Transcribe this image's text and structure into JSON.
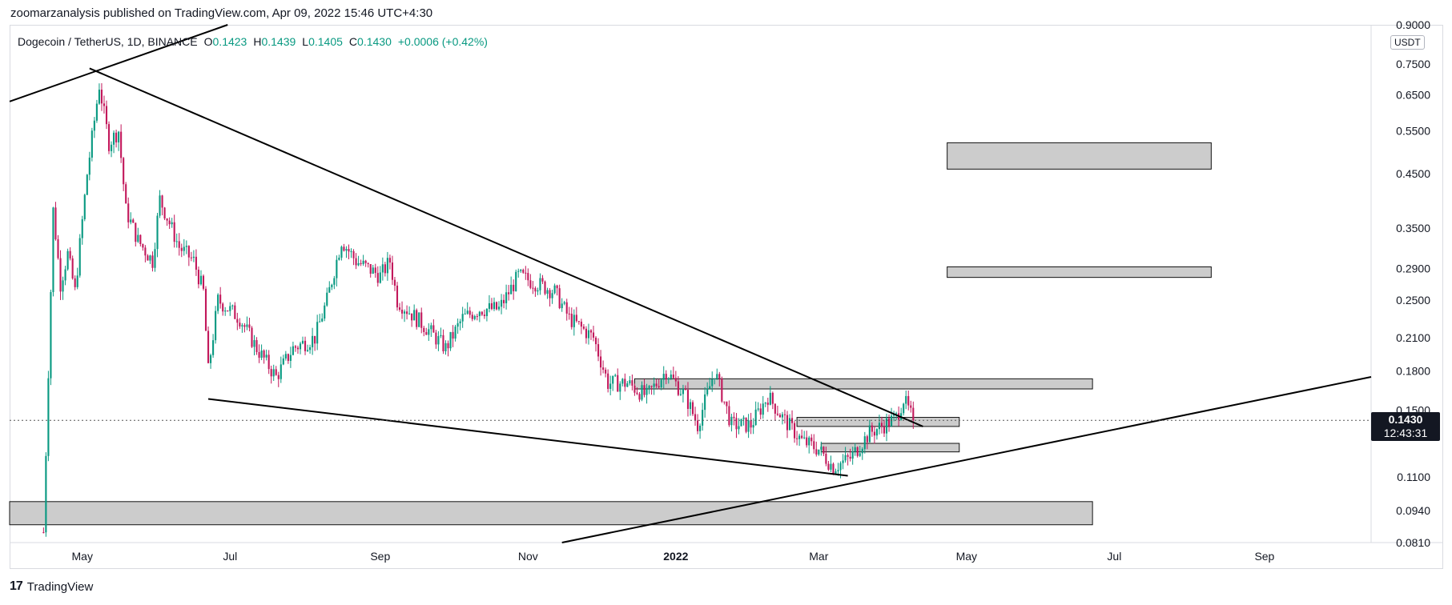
{
  "header": {
    "publisher": "zoomarzanalysis published on TradingView.com, Apr 09, 2022 15:46 UTC+4:30"
  },
  "footer": {
    "brand": "TradingView",
    "logo": "17"
  },
  "legend": {
    "symbol": "Dogecoin / TetherUS, 1D, BINANCE",
    "open_label": "O",
    "open": "0.1423",
    "high_label": "H",
    "high": "0.1439",
    "low_label": "L",
    "low": "0.1405",
    "close_label": "C",
    "close": "0.1430",
    "change": "+0.0006 (+0.42%)"
  },
  "currency": "USDT",
  "price_tag": {
    "price": "0.1430",
    "countdown": "12:43:31"
  },
  "colors": {
    "up": "#089981",
    "down": "#c2185b",
    "zone_fill": "#cccccc",
    "line": "#000000"
  },
  "chart_data": {
    "type": "candlestick",
    "scale": "log",
    "ylim": [
      0.081,
      0.9
    ],
    "y_ticks": [
      "0.9000",
      "0.7500",
      "0.6500",
      "0.5500",
      "0.4500",
      "0.3500",
      "0.2900",
      "0.2500",
      "0.2100",
      "0.1800",
      "0.1500",
      "0.1100",
      "0.0940",
      "0.0810"
    ],
    "x_ticks": [
      "May",
      "Jul",
      "Sep",
      "Nov",
      "2022",
      "Mar",
      "May",
      "Jul",
      "Sep"
    ],
    "current_price": 0.143,
    "close_path": [
      {
        "x": "2021-04-15",
        "y": 0.085
      },
      {
        "x": "2021-04-17",
        "y": 0.18
      },
      {
        "x": "2021-04-19",
        "y": 0.38
      },
      {
        "x": "2021-04-22",
        "y": 0.27
      },
      {
        "x": "2021-04-25",
        "y": 0.31
      },
      {
        "x": "2021-04-28",
        "y": 0.26
      },
      {
        "x": "2021-05-03",
        "y": 0.45
      },
      {
        "x": "2021-05-08",
        "y": 0.68
      },
      {
        "x": "2021-05-12",
        "y": 0.52
      },
      {
        "x": "2021-05-16",
        "y": 0.55
      },
      {
        "x": "2021-05-19",
        "y": 0.38
      },
      {
        "x": "2021-05-24",
        "y": 0.33
      },
      {
        "x": "2021-05-30",
        "y": 0.3
      },
      {
        "x": "2021-06-02",
        "y": 0.4
      },
      {
        "x": "2021-06-10",
        "y": 0.32
      },
      {
        "x": "2021-06-16",
        "y": 0.3
      },
      {
        "x": "2021-06-20",
        "y": 0.26
      },
      {
        "x": "2021-06-22",
        "y": 0.18
      },
      {
        "x": "2021-06-26",
        "y": 0.25
      },
      {
        "x": "2021-07-05",
        "y": 0.23
      },
      {
        "x": "2021-07-12",
        "y": 0.2
      },
      {
        "x": "2021-07-20",
        "y": 0.175
      },
      {
        "x": "2021-07-27",
        "y": 0.2
      },
      {
        "x": "2021-08-05",
        "y": 0.21
      },
      {
        "x": "2021-08-10",
        "y": 0.25
      },
      {
        "x": "2021-08-16",
        "y": 0.33
      },
      {
        "x": "2021-08-22",
        "y": 0.3
      },
      {
        "x": "2021-09-01",
        "y": 0.28
      },
      {
        "x": "2021-09-05",
        "y": 0.3
      },
      {
        "x": "2021-09-08",
        "y": 0.25
      },
      {
        "x": "2021-09-20",
        "y": 0.22
      },
      {
        "x": "2021-09-28",
        "y": 0.2
      },
      {
        "x": "2021-10-05",
        "y": 0.23
      },
      {
        "x": "2021-10-12",
        "y": 0.24
      },
      {
        "x": "2021-10-20",
        "y": 0.24
      },
      {
        "x": "2021-10-28",
        "y": 0.28
      },
      {
        "x": "2021-11-05",
        "y": 0.27
      },
      {
        "x": "2021-11-12",
        "y": 0.26
      },
      {
        "x": "2021-11-18",
        "y": 0.23
      },
      {
        "x": "2021-11-28",
        "y": 0.21
      },
      {
        "x": "2021-12-04",
        "y": 0.17
      },
      {
        "x": "2021-12-12",
        "y": 0.17
      },
      {
        "x": "2021-12-20",
        "y": 0.16
      },
      {
        "x": "2021-12-28",
        "y": 0.18
      },
      {
        "x": "2022-01-05",
        "y": 0.16
      },
      {
        "x": "2022-01-10",
        "y": 0.14
      },
      {
        "x": "2022-01-17",
        "y": 0.18
      },
      {
        "x": "2022-01-24",
        "y": 0.14
      },
      {
        "x": "2022-02-01",
        "y": 0.14
      },
      {
        "x": "2022-02-08",
        "y": 0.16
      },
      {
        "x": "2022-02-14",
        "y": 0.145
      },
      {
        "x": "2022-02-22",
        "y": 0.13
      },
      {
        "x": "2022-03-01",
        "y": 0.125
      },
      {
        "x": "2022-03-07",
        "y": 0.115
      },
      {
        "x": "2022-03-14",
        "y": 0.12
      },
      {
        "x": "2022-03-22",
        "y": 0.135
      },
      {
        "x": "2022-03-28",
        "y": 0.14
      },
      {
        "x": "2022-04-02",
        "y": 0.145
      },
      {
        "x": "2022-04-05",
        "y": 0.158
      },
      {
        "x": "2022-04-09",
        "y": 0.143
      }
    ],
    "zones": [
      {
        "x1": "2021-12-15",
        "x2": "2022-06-22",
        "y_low": 0.1655,
        "y_high": 0.1735
      },
      {
        "x1": "2022-02-20",
        "x2": "2022-04-28",
        "y_low": 0.139,
        "y_high": 0.145
      },
      {
        "x1": "2022-03-02",
        "x2": "2022-04-28",
        "y_low": 0.1235,
        "y_high": 0.1285
      },
      {
        "x1": "2022-04-23",
        "x2": "2022-08-10",
        "y_low": 0.46,
        "y_high": 0.52
      },
      {
        "x1": "2022-04-23",
        "x2": "2022-08-10",
        "y_low": 0.278,
        "y_high": 0.292
      },
      {
        "x1": "2021-04-01",
        "x2": "2022-06-22",
        "y_low": 0.088,
        "y_high": 0.098
      }
    ],
    "trendlines": [
      {
        "x1": "2021-04-01",
        "y1": 0.63,
        "x2": "2021-06-30",
        "y2": 0.9
      },
      {
        "x1": "2021-05-04",
        "y1": 0.735,
        "x2": "2022-04-13",
        "y2": 0.139
      },
      {
        "x1": "2021-06-22",
        "y1": 0.158,
        "x2": "2022-03-13",
        "y2": 0.1105
      },
      {
        "x1": "2021-11-15",
        "y1": 0.081,
        "x2": "2022-10-15",
        "y2": 0.175
      }
    ]
  }
}
